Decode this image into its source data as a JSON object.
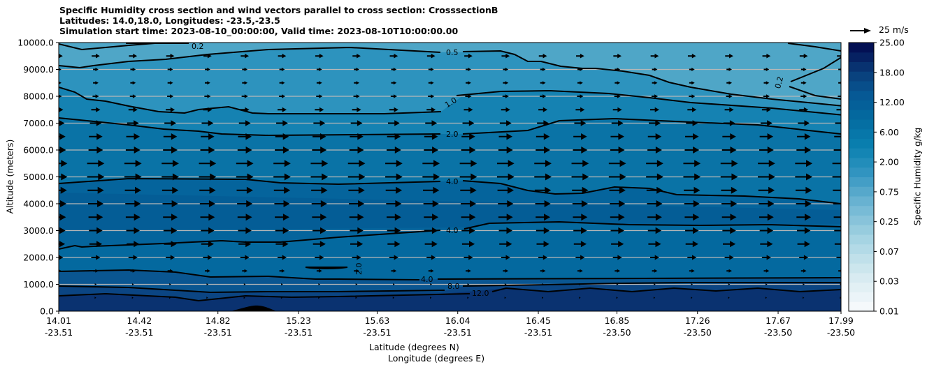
{
  "chart_data": {
    "type": "heatmap",
    "subtype": "filled-contour cross section with wind vectors",
    "title_lines": [
      "Specific Humidity cross section and wind vectors parallel to cross section: CrosssectionB",
      "Latitudes: 14.0,18.0, Longitudes: -23.5,-23.5",
      "Simulation start time: 2023-08-10_00:00:00, Valid time: 2023-08-10T10:00:00.00"
    ],
    "ylabel": "Altitude (meters)",
    "xlabel_lat": "Latitude (degrees N)",
    "xlabel_lon": "Longitude (degrees E)",
    "ylim": [
      0,
      10000
    ],
    "xlim": [
      14.01,
      17.99
    ],
    "y_ticks": [
      "0.0",
      "1000.0",
      "2000.0",
      "3000.0",
      "4000.0",
      "5000.0",
      "6000.0",
      "7000.0",
      "8000.0",
      "9000.0",
      "10000.0"
    ],
    "x_ticks": [
      {
        "lat": "14.01",
        "lon": "-23.51"
      },
      {
        "lat": "14.42",
        "lon": "-23.51"
      },
      {
        "lat": "14.82",
        "lon": "-23.51"
      },
      {
        "lat": "15.23",
        "lon": "-23.51"
      },
      {
        "lat": "15.63",
        "lon": "-23.51"
      },
      {
        "lat": "16.04",
        "lon": "-23.51"
      },
      {
        "lat": "16.45",
        "lon": "-23.51"
      },
      {
        "lat": "16.85",
        "lon": "-23.50"
      },
      {
        "lat": "17.26",
        "lon": "-23.50"
      },
      {
        "lat": "17.67",
        "lon": "-23.50"
      },
      {
        "lat": "17.99",
        "lon": "-23.50"
      }
    ],
    "grid": "horizontal",
    "contour_labels": [
      "0.2",
      "0.5",
      "1.0",
      "2.0",
      "4.0",
      "4.0",
      "2.0",
      "4.0",
      "8.0",
      "12.0",
      "0.2"
    ],
    "colorbar": {
      "label": "Specific Humidity g/kg",
      "ticks": [
        "0.01",
        "0.03",
        "0.07",
        "0.25",
        "0.75",
        "2.00",
        "6.00",
        "12.00",
        "18.00",
        "25.00"
      ],
      "levels": 28
    },
    "quiver_key": "25 m/s",
    "wind_rows_altitude_m": [
      500,
      1000,
      1500,
      2000,
      2500,
      3000,
      3500,
      4000,
      4500,
      5000,
      5500,
      6000,
      6500,
      7000,
      7500,
      8000,
      8500,
      9000,
      9500
    ],
    "wind_relative_speed": [
      0.05,
      0.1,
      0.3,
      0.5,
      0.7,
      0.75,
      0.8,
      0.85,
      0.9,
      0.95,
      0.95,
      0.8,
      0.75,
      0.65,
      0.5,
      0.35,
      0.3,
      0.3,
      0.45
    ],
    "colors": {
      "top": "#4fa6c7",
      "low": "#0a3270"
    }
  }
}
